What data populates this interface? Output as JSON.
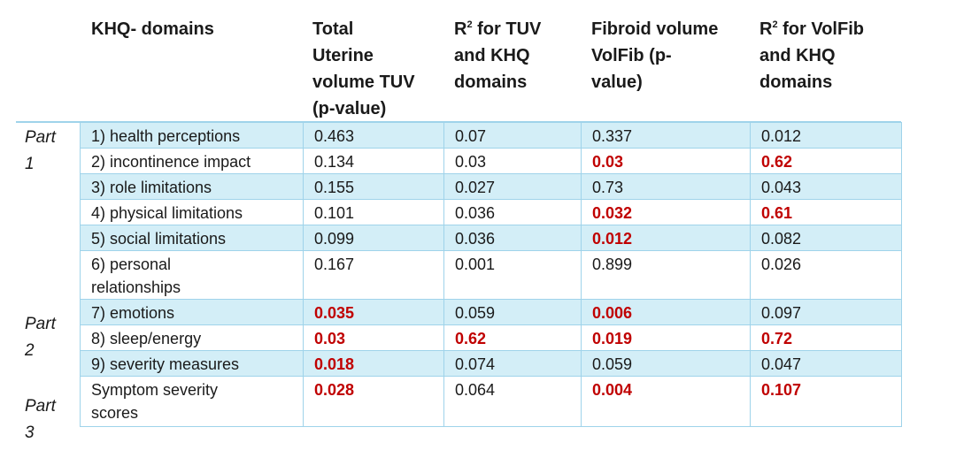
{
  "headers": {
    "domains": "KHQ- domains",
    "tuv_lines": [
      "Total",
      "Uterine",
      "volume TUV",
      "(p-value)"
    ],
    "r2_tuv_lines": [
      "R",
      "2",
      " for TUV",
      "and KHQ",
      "domains"
    ],
    "volfib_lines": [
      "Fibroid volume",
      "VolFib (p-",
      "value)"
    ],
    "r2_volfib_lines": [
      "R",
      "2",
      " for VolFib",
      "and KHQ",
      "domains"
    ]
  },
  "parts": [
    {
      "word": "Part",
      "num": "1"
    },
    {
      "word": "Part",
      "num": "2"
    },
    {
      "word": "Part",
      "num": "3"
    }
  ],
  "rows": [
    {
      "domain": "1) health perceptions",
      "tuv": "0.463",
      "r2_tuv": "0.07",
      "volfib": "0.337",
      "r2_volfib": "0.012"
    },
    {
      "domain": "2) incontinence impact",
      "tuv": "0.134",
      "r2_tuv": "0.03",
      "volfib": "0.03",
      "r2_volfib": "0.62"
    },
    {
      "domain": "3) role limitations",
      "tuv": "0.155",
      "r2_tuv": "0.027",
      "volfib": "0.73",
      "r2_volfib": "0.043"
    },
    {
      "domain": "4) physical limitations",
      "tuv": "0.101",
      "r2_tuv": "0.036",
      "volfib": "0.032",
      "r2_volfib": "0.61"
    },
    {
      "domain": "5) social limitations",
      "tuv": "0.099",
      "r2_tuv": "0.036",
      "volfib": "0.012",
      "r2_volfib": "0.082"
    },
    {
      "domain_lines": [
        "6) personal",
        "relationships"
      ],
      "tuv": "0.167",
      "r2_tuv": "0.001",
      "volfib": "0.899",
      "r2_volfib": "0.026"
    },
    {
      "domain": "7) emotions",
      "tuv": "0.035",
      "r2_tuv": "0.059",
      "volfib": "0.006",
      "r2_volfib": "0.097"
    },
    {
      "domain": "8) sleep/energy",
      "tuv": "0.03",
      "r2_tuv": "0.62",
      "volfib": "0.019",
      "r2_volfib": "0.72"
    },
    {
      "domain": "9) severity measures",
      "tuv": "0.018",
      "r2_tuv": "0.074",
      "volfib": "0.059",
      "r2_volfib": "0.047"
    },
    {
      "domain_lines": [
        "Symptom severity",
        "scores"
      ],
      "tuv": "0.028",
      "r2_tuv": "0.064",
      "volfib": "0.004",
      "r2_volfib": "0.107"
    }
  ],
  "colors": {
    "significant": "#c00000",
    "row_shade": "#d3eef7",
    "border": "#9fd3ea"
  }
}
